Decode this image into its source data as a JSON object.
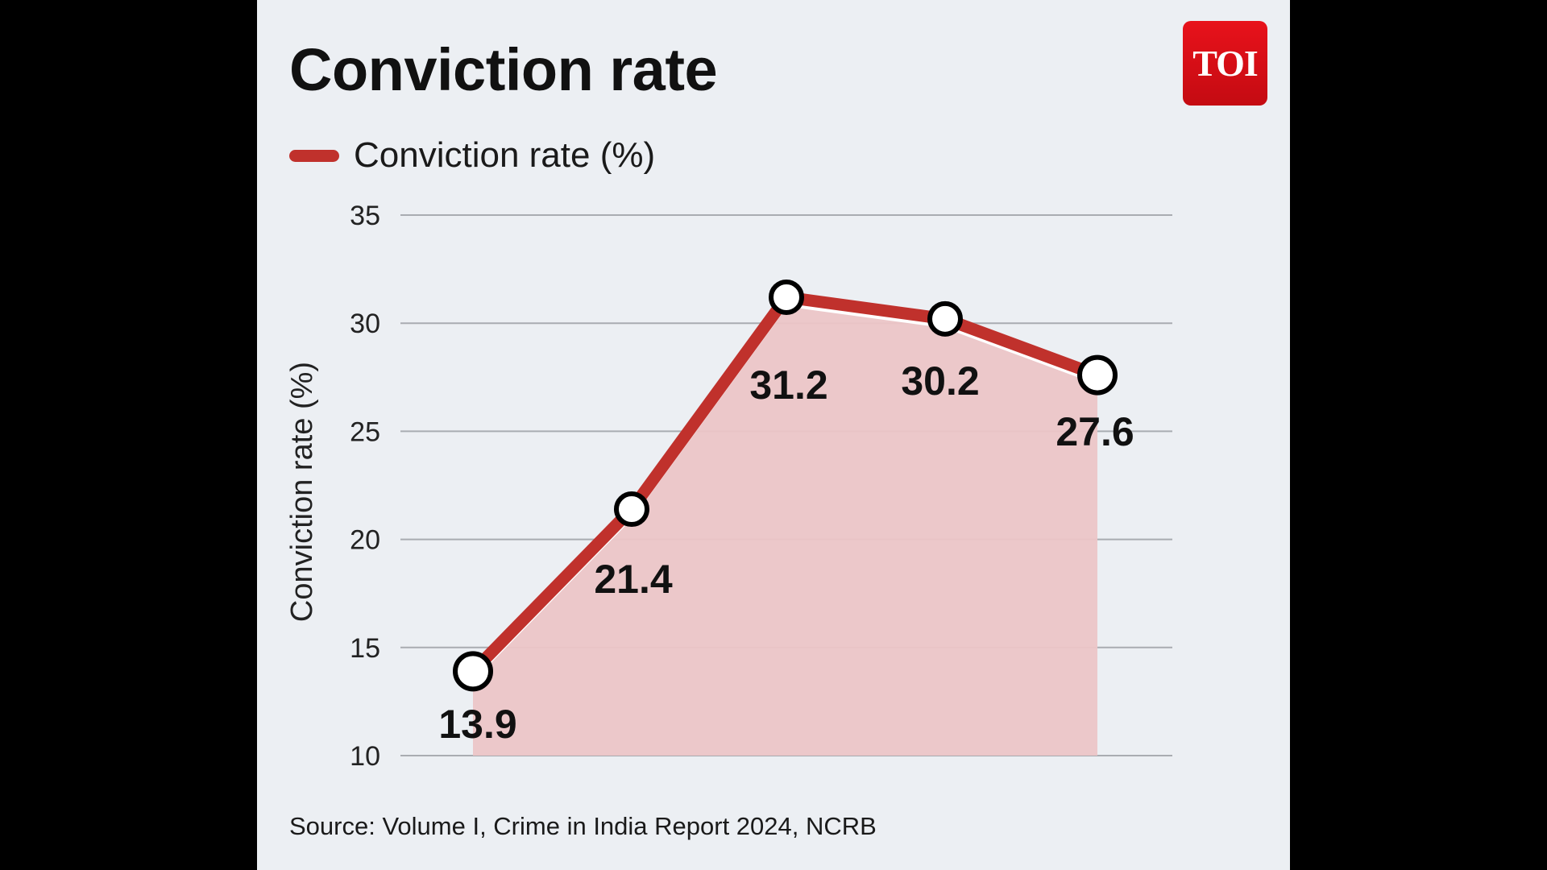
{
  "title": "Conviction rate",
  "logo_text": "TOI",
  "source": "Source: Volume I, Crime in India Report 2024, NCRB",
  "colors": {
    "line": "#c0312c",
    "area": "#ecc5c7",
    "background": "#eceff3",
    "logo": "#e8121b"
  },
  "chart_data": {
    "type": "line",
    "title": "Conviction rate",
    "xlabel": "",
    "ylabel": "Conviction rate (%)",
    "ylim": [
      10,
      35
    ],
    "yticks": [
      10,
      15,
      20,
      25,
      30,
      35
    ],
    "grid": true,
    "legend_position": "top-left",
    "area_fill": true,
    "series": [
      {
        "name": "Conviction rate (%)",
        "values": [
          13.9,
          21.4,
          31.2,
          30.2,
          27.6
        ],
        "labels": [
          "13.9",
          "21.4",
          "31.2",
          "30.2",
          "27.6"
        ]
      }
    ]
  }
}
